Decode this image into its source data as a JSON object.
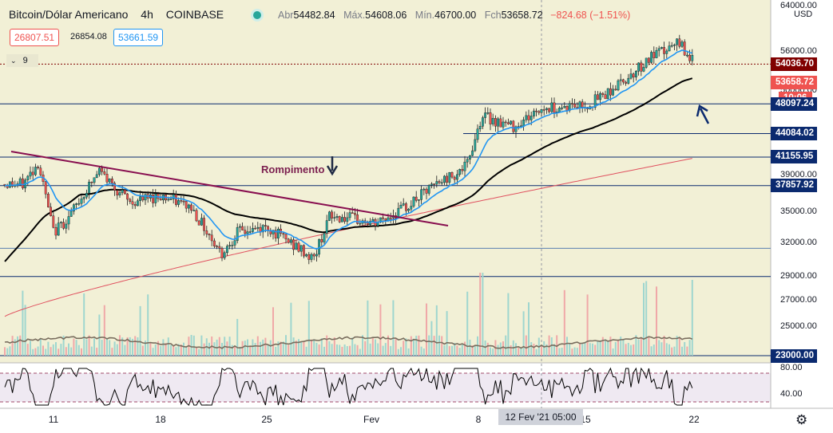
{
  "header": {
    "title": "Bitcoin/Dólar Americano",
    "interval": "4h",
    "exchange": "COINBASE",
    "open_label": "Abr",
    "open": "54482.84",
    "high_label": "Máx.",
    "high": "54608.06",
    "low_label": "Mín.",
    "low": "46700.00",
    "close_label": "Fch",
    "close": "53658.72",
    "change": "−824.68 (−1.51%)"
  },
  "bid_box": "26807.51",
  "spread_text": "26854.08",
  "ask_box": "53661.59",
  "indicator_label": "9",
  "currency": "USD",
  "annotation_text": "Rompimento",
  "crosshair_label": "12 Fev '21   05:00",
  "y_ticks": [
    "64000.00",
    "56000.00",
    "50000.00",
    "39000.00",
    "35000.00",
    "32000.00",
    "29000.00",
    "27000.00",
    "25000.00"
  ],
  "rsi_ticks": [
    "80.00",
    "40.00"
  ],
  "x_ticks": [
    "11",
    "18",
    "25",
    "Fev",
    "8",
    "15",
    "22"
  ],
  "price_plates": [
    {
      "value": "54036.70",
      "color": "#800000"
    },
    {
      "value": "53658.72",
      "color": "#ef5350"
    },
    {
      "value": "10:06",
      "color": "#ef5350"
    },
    {
      "value": "48097.24",
      "color": "#0b2a6f"
    },
    {
      "value": "44084.02",
      "color": "#0b2a6f"
    },
    {
      "value": "41155.95",
      "color": "#0b2a6f"
    },
    {
      "value": "37857.92",
      "color": "#0b2a6f"
    },
    {
      "value": "23000.00",
      "color": "#0b2a6f"
    }
  ],
  "colors": {
    "up": "#26a69a",
    "down": "#ef5350",
    "ema_fast": "#2196f3",
    "ma_slow": "#000000",
    "ma_long": "#e0515f",
    "hline": "#0b2a6f",
    "trendline": "#880e4f",
    "volume_ma": "#7a6e5f",
    "rsi": "#000000"
  },
  "chart_data": {
    "type": "candlestick",
    "symbol": "Bitcoin/Dólar Americano",
    "timeframe": "4h",
    "exchange": "COINBASE",
    "x_ticks": [
      "11",
      "18",
      "25",
      "Fev",
      "8",
      "15",
      "22"
    ],
    "y_scale": "log",
    "ylim": [
      23000,
      64000
    ],
    "y_ticks": [
      25000,
      27000,
      29000,
      32000,
      35000,
      39000,
      50000,
      56000,
      64000
    ],
    "close_path": [
      {
        "x": "9 Jan",
        "y": 38000
      },
      {
        "x": "10 Jan",
        "y": 40500
      },
      {
        "x": "11 Jan",
        "y": 33000
      },
      {
        "x": "12 Jan",
        "y": 34500
      },
      {
        "x": "13 Jan",
        "y": 37000
      },
      {
        "x": "14 Jan",
        "y": 39500
      },
      {
        "x": "16 Jan",
        "y": 36000
      },
      {
        "x": "18 Jan",
        "y": 36800
      },
      {
        "x": "20 Jan",
        "y": 35500
      },
      {
        "x": "22 Jan",
        "y": 31000
      },
      {
        "x": "23 Jan",
        "y": 33000
      },
      {
        "x": "25 Jan",
        "y": 33500
      },
      {
        "x": "27 Jan",
        "y": 31500
      },
      {
        "x": "28 Jan",
        "y": 30500
      },
      {
        "x": "29 Jan",
        "y": 34500
      },
      {
        "x": "30 Jan",
        "y": 34500
      },
      {
        "x": "1 Fev",
        "y": 33800
      },
      {
        "x": "3 Fev",
        "y": 35500
      },
      {
        "x": "5 Fev",
        "y": 38000
      },
      {
        "x": "7 Fev",
        "y": 40000
      },
      {
        "x": "8 Fev",
        "y": 46500
      },
      {
        "x": "10 Fev",
        "y": 45000
      },
      {
        "x": "12 Fev",
        "y": 47500
      },
      {
        "x": "15 Fev",
        "y": 48000
      },
      {
        "x": "17 Fev",
        "y": 51000
      },
      {
        "x": "19 Fev",
        "y": 55000
      },
      {
        "x": "21 Fev",
        "y": 57500
      },
      {
        "x": "22 Fev",
        "y": 53658.72
      }
    ],
    "horizontal_levels": [
      54036.7,
      48097.24,
      44084.02,
      41155.95,
      37857.92,
      31500,
      29000,
      23000
    ],
    "trendline": {
      "from": {
        "x": "9 Jan",
        "y": 40600
      },
      "to": {
        "x": "8 Fev",
        "y": 33000
      },
      "label": "Rompimento"
    },
    "last_close": 53658.72,
    "countdown": "10:06",
    "rsi": {
      "levels": [
        80,
        40
      ]
    }
  }
}
